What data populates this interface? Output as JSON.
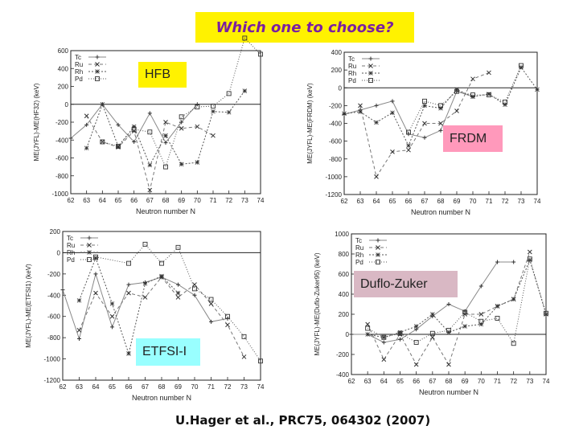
{
  "header": {
    "title": "Which one to choose?"
  },
  "citation": "U.Hager et al., PRC75, 064302 (2007)",
  "labels": {
    "hfb": "HFB",
    "frdm": "FRDM",
    "duflo": "Duflo-Zuker",
    "etfsi": "ETFSI-I"
  },
  "colors": {
    "title_bg": "#fff200",
    "title_text": "#7a1fa2",
    "hfb_bg": "#fff200",
    "frdm_bg": "#ff99bb",
    "duflo_bg": "#d9b8c4",
    "etfsi_bg": "#99ffff"
  },
  "chart_data": [
    {
      "type": "line",
      "xlabel": "Neutron number N",
      "ylabel": "ME(JYFL)-ME(HF32) (keV)",
      "xlim": [
        62,
        74
      ],
      "ylim": [
        -1000,
        600
      ],
      "x_ticks": [
        62,
        63,
        64,
        65,
        66,
        67,
        68,
        69,
        70,
        71,
        72,
        73,
        74
      ],
      "y_ticks": [
        -1000,
        -800,
        -600,
        -400,
        -200,
        0,
        200,
        400,
        600
      ],
      "legend": [
        "Tc",
        "Ru",
        "Rh",
        "Pd"
      ],
      "series": [
        {
          "name": "Tc",
          "x": [
            62,
            63,
            64,
            65,
            66,
            67,
            68,
            69,
            70
          ],
          "y": [
            -380,
            -230,
            0,
            -230,
            -420,
            -100,
            -430,
            -200,
            0
          ]
        },
        {
          "name": "Ru",
          "x": [
            63,
            64,
            65,
            66,
            67,
            68,
            69,
            70,
            71
          ],
          "y": [
            -130,
            -420,
            -480,
            -300,
            -960,
            -200,
            -270,
            -250,
            -350
          ]
        },
        {
          "name": "Rh",
          "x": [
            63,
            64,
            65,
            66,
            67,
            68,
            69,
            70,
            71,
            72,
            73
          ],
          "y": [
            -490,
            0,
            -470,
            -250,
            -680,
            -350,
            -670,
            -650,
            -80,
            -90,
            150
          ]
        },
        {
          "name": "Pd",
          "x": [
            64,
            65,
            66,
            67,
            68,
            69,
            70,
            71,
            72,
            73,
            74
          ],
          "y": [
            -420,
            -470,
            -280,
            -310,
            -700,
            -140,
            -30,
            -20,
            120,
            740,
            560
          ]
        }
      ]
    },
    {
      "type": "line",
      "xlabel": "Neutron number N",
      "ylabel": "ME(JYFL)-ME(FRDM) (keV)",
      "xlim": [
        62,
        74
      ],
      "ylim": [
        -1200,
        400
      ],
      "x_ticks": [
        62,
        63,
        64,
        65,
        66,
        67,
        68,
        69,
        70,
        71,
        72,
        73,
        74
      ],
      "y_ticks": [
        -1200,
        -1000,
        -800,
        -600,
        -400,
        -200,
        0,
        200,
        400
      ],
      "legend": [
        "Tc",
        "Ru",
        "Rh",
        "Pd"
      ],
      "series": [
        {
          "name": "Tc",
          "x": [
            62,
            63,
            64,
            65,
            66,
            67,
            68,
            69,
            70
          ],
          "y": [
            -300,
            -250,
            -200,
            -150,
            -520,
            -560,
            -480,
            -40,
            -100
          ]
        },
        {
          "name": "Ru",
          "x": [
            63,
            64,
            65,
            66,
            67,
            68,
            69,
            70,
            71
          ],
          "y": [
            -200,
            -1000,
            -720,
            -700,
            -400,
            -400,
            -260,
            100,
            170
          ]
        },
        {
          "name": "Rh",
          "x": [
            62,
            63,
            64,
            65,
            66,
            67,
            68,
            69,
            70,
            71,
            72,
            73,
            74
          ],
          "y": [
            -290,
            -270,
            -390,
            -280,
            -650,
            -200,
            -230,
            -20,
            -100,
            -70,
            -190,
            230,
            -20
          ]
        },
        {
          "name": "Pd",
          "x": [
            66,
            67,
            68,
            69,
            70,
            71,
            72,
            73
          ],
          "y": [
            -500,
            -150,
            -200,
            -40,
            -80,
            -80,
            -160,
            250
          ]
        }
      ]
    },
    {
      "type": "line",
      "xlabel": "Neutron number N",
      "ylabel": "ME(JYFL)-ME(ETFSI1) (keV)",
      "xlim": [
        62,
        74
      ],
      "ylim": [
        -1200,
        200
      ],
      "x_ticks": [
        62,
        63,
        64,
        65,
        66,
        67,
        68,
        69,
        70,
        71,
        72,
        73,
        74
      ],
      "y_ticks": [
        -1200,
        -1000,
        -800,
        -600,
        -400,
        -200,
        0,
        200
      ],
      "legend": [
        "Tc",
        "Ru",
        "Rh",
        "Pd"
      ],
      "series": [
        {
          "name": "Tc",
          "x": [
            62,
            63,
            64,
            65,
            66,
            67,
            68,
            69,
            70,
            71,
            72
          ],
          "y": [
            -350,
            -810,
            -200,
            -700,
            -300,
            -280,
            -230,
            -300,
            -400,
            -650,
            -620
          ]
        },
        {
          "name": "Ru",
          "x": [
            63,
            64,
            65,
            66,
            67,
            68,
            69,
            70,
            71,
            72,
            73
          ],
          "y": [
            -730,
            -380,
            -600,
            -380,
            -420,
            -230,
            -420,
            -300,
            -480,
            -680,
            -980
          ]
        },
        {
          "name": "Rh",
          "x": [
            63,
            64,
            65,
            66,
            67,
            68,
            69
          ],
          "y": [
            -450,
            -50,
            -480,
            -950,
            -290,
            -220,
            -380
          ]
        },
        {
          "name": "Pd",
          "x": [
            64,
            66,
            67,
            68,
            69,
            70,
            71,
            72,
            73,
            74
          ],
          "y": [
            -40,
            -100,
            80,
            -100,
            50,
            -340,
            -440,
            -600,
            -790,
            -1020
          ]
        }
      ]
    },
    {
      "type": "line",
      "xlabel": "Neutron number N",
      "ylabel": "ME(JYFL)-ME(Duflo-Zuker95) (keV)",
      "xlim": [
        62,
        74
      ],
      "ylim": [
        -400,
        1000
      ],
      "x_ticks": [
        62,
        63,
        64,
        65,
        66,
        67,
        68,
        69,
        70,
        71,
        72,
        73,
        74
      ],
      "y_ticks": [
        -400,
        -200,
        0,
        200,
        400,
        600,
        800,
        1000
      ],
      "legend": [
        "Tc",
        "Ru",
        "Rh",
        "Pd"
      ],
      "series": [
        {
          "name": "Tc",
          "x": [
            62,
            63,
            64,
            65,
            66,
            67,
            68,
            69,
            70,
            71,
            72
          ],
          "y": [
            0,
            0,
            -80,
            -50,
            50,
            180,
            300,
            230,
            480,
            720,
            720
          ]
        },
        {
          "name": "Ru",
          "x": [
            63,
            64,
            65,
            66,
            67,
            68,
            69,
            70,
            71,
            72,
            73
          ],
          "y": [
            100,
            -250,
            0,
            -300,
            -30,
            -300,
            200,
            200,
            280,
            350,
            820
          ]
        },
        {
          "name": "Rh",
          "x": [
            63,
            64,
            65,
            66,
            67,
            68,
            69,
            70,
            71,
            72,
            73,
            74
          ],
          "y": [
            0,
            -30,
            20,
            80,
            200,
            20,
            80,
            100,
            280,
            350,
            740,
            200
          ]
        },
        {
          "name": "Pd",
          "x": [
            63,
            64,
            65,
            66,
            67,
            68,
            69,
            70,
            71,
            72,
            73,
            74
          ],
          "y": [
            60,
            -30,
            10,
            -80,
            10,
            40,
            220,
            130,
            160,
            -90,
            750,
            210
          ]
        }
      ]
    }
  ]
}
